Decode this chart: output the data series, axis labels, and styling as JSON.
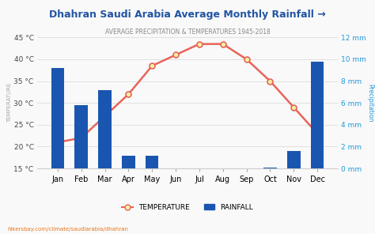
{
  "title": "Dhahran Saudi Arabia Average Monthly Rainfall →",
  "subtitle": "AVERAGE PRECIPITATION & TEMPERATURES 1945-2018",
  "months": [
    "Jan",
    "Feb",
    "Mar",
    "Apr",
    "May",
    "Jun",
    "Jul",
    "Aug",
    "Sep",
    "Oct",
    "Nov",
    "Dec"
  ],
  "rainfall_mm": [
    9.2,
    5.8,
    7.2,
    1.2,
    1.2,
    0.0,
    0.0,
    0.0,
    0.0,
    0.1,
    1.6,
    9.8
  ],
  "temperature_c": [
    21.0,
    22.0,
    27.0,
    32.0,
    38.5,
    41.0,
    43.5,
    43.5,
    40.0,
    35.0,
    29.0,
    23.0
  ],
  "bar_color": "#1a56b0",
  "line_color": "#e8645a",
  "marker_face": "#f5f0a0",
  "marker_edge": "#e8645a",
  "background_color": "#f9f9f9",
  "title_color": "#2255a4",
  "subtitle_color": "#888888",
  "left_axis_color": "#555555",
  "right_axis_color": "#2299dd",
  "temp_ylim": [
    15,
    45
  ],
  "rain_ylim": [
    0,
    12
  ],
  "temp_ticks": [
    15,
    20,
    25,
    30,
    35,
    40,
    45
  ],
  "rain_ticks": [
    0,
    2,
    4,
    6,
    8,
    10,
    12
  ],
  "ylabel_left": "TEMPERATURE",
  "ylabel_right": "Precipitation",
  "watermark": "hikersbay.com/climate/saudiarabia/dhahran"
}
